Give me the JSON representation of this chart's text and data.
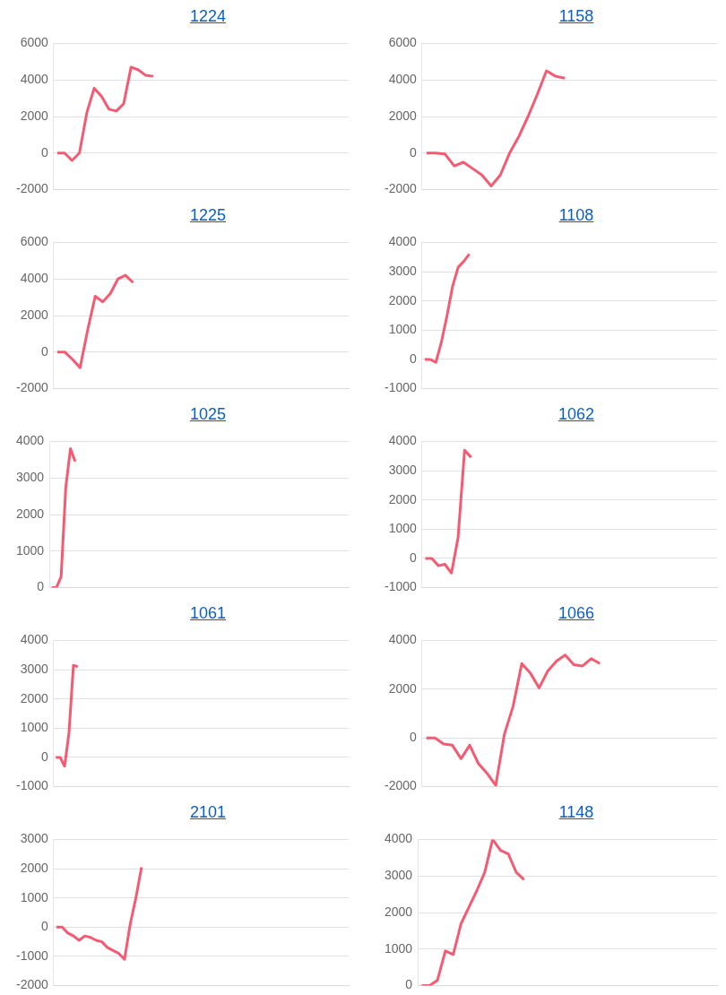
{
  "chart_data": [
    {
      "type": "line",
      "title": "1224",
      "color": "#f45b73",
      "grid": "y",
      "tick_labels": "y",
      "ylim": [
        -2000,
        6000
      ],
      "yticks": [
        -2000,
        0,
        2000,
        4000,
        6000
      ],
      "categories": [
        null,
        null,
        null,
        null,
        null,
        null,
        null,
        null,
        null,
        null,
        null,
        null,
        null,
        null,
        null,
        null,
        null,
        null,
        null,
        null,
        null,
        null,
        null,
        null,
        null,
        null,
        null,
        null,
        null,
        null,
        null,
        null,
        null,
        null,
        null,
        null,
        null,
        null,
        null,
        null
      ],
      "values": [
        0,
        0,
        -400,
        0,
        2200,
        3550,
        3100,
        2400,
        2300,
        2700,
        4700,
        4550,
        4250,
        4200,
        null,
        null,
        null,
        null,
        null,
        null,
        null,
        null,
        null,
        null,
        null,
        null,
        null,
        null,
        null,
        null,
        null,
        null,
        null,
        null,
        null,
        null,
        null,
        null,
        null,
        null
      ]
    },
    {
      "type": "line",
      "title": "1158",
      "color": "#f45b73",
      "grid": "y",
      "tick_labels": "y",
      "ylim": [
        -2000,
        6000
      ],
      "yticks": [
        -2000,
        0,
        2000,
        4000,
        6000
      ],
      "categories": [
        null,
        null,
        null,
        null,
        null,
        null,
        null,
        null,
        null,
        null,
        null,
        null,
        null,
        null,
        null,
        null,
        null,
        null,
        null,
        null,
        null,
        null,
        null,
        null,
        null,
        null,
        null,
        null,
        null,
        null,
        null,
        null
      ],
      "values": [
        0,
        0,
        -50,
        -700,
        -500,
        -850,
        -1200,
        -1800,
        -1200,
        0,
        900,
        2000,
        3200,
        4500,
        4200,
        4100,
        null,
        null,
        null,
        null,
        null,
        null,
        null,
        null,
        null,
        null,
        null,
        null,
        null,
        null,
        null,
        null
      ]
    },
    {
      "type": "line",
      "title": "1225",
      "color": "#f45b73",
      "grid": "y",
      "tick_labels": "y",
      "ylim": [
        -2000,
        6000
      ],
      "yticks": [
        -2000,
        0,
        2000,
        4000,
        6000
      ],
      "categories": [
        null,
        null,
        null,
        null,
        null,
        null,
        null,
        null,
        null,
        null,
        null,
        null,
        null,
        null,
        null,
        null,
        null,
        null,
        null,
        null,
        null,
        null,
        null,
        null,
        null,
        null,
        null,
        null,
        null,
        null,
        null,
        null,
        null,
        null,
        null,
        null,
        null,
        null,
        null
      ],
      "values": [
        0,
        0,
        -400,
        -850,
        1200,
        3050,
        2750,
        3200,
        4000,
        4200,
        3800,
        null,
        null,
        null,
        null,
        null,
        null,
        null,
        null,
        null,
        null,
        null,
        null,
        null,
        null,
        null,
        null,
        null,
        null,
        null,
        null,
        null,
        null,
        null,
        null,
        null,
        null,
        null,
        null
      ]
    },
    {
      "type": "line",
      "title": "1108",
      "color": "#f45b73",
      "grid": "y",
      "tick_labels": "y",
      "ylim": [
        -1000,
        4000
      ],
      "yticks": [
        -1000,
        0,
        1000,
        2000,
        3000,
        4000
      ],
      "categories": [
        null,
        null,
        null,
        null,
        null,
        null,
        null,
        null,
        null,
        null,
        null,
        null,
        null,
        null,
        null,
        null,
        null,
        null,
        null,
        null,
        null,
        null,
        null,
        null,
        null,
        null,
        null,
        null,
        null,
        null,
        null,
        null,
        null,
        null,
        null,
        null,
        null,
        null,
        null,
        null,
        null,
        null,
        null,
        null,
        null,
        null,
        null,
        null,
        null,
        null,
        null,
        null,
        null
      ],
      "values": [
        0,
        0,
        -100,
        600,
        1500,
        2500,
        3150,
        3350,
        3600,
        null,
        null,
        null,
        null,
        null,
        null,
        null,
        null,
        null,
        null,
        null,
        null,
        null,
        null,
        null,
        null,
        null,
        null,
        null,
        null,
        null,
        null,
        null,
        null,
        null,
        null,
        null,
        null,
        null,
        null,
        null,
        null,
        null,
        null,
        null,
        null,
        null,
        null,
        null,
        null,
        null,
        null,
        null,
        null
      ]
    },
    {
      "type": "line",
      "title": "1025",
      "color": "#f45b73",
      "grid": "y",
      "tick_labels": "y",
      "ylim": [
        0,
        4000
      ],
      "yticks": [
        0,
        1000,
        2000,
        3000,
        4000
      ],
      "categories": [
        null,
        null,
        null,
        null,
        null,
        null,
        null,
        null,
        null,
        null,
        null,
        null,
        null,
        null,
        null,
        null,
        null,
        null,
        null,
        null,
        null,
        null,
        null,
        null,
        null,
        null,
        null,
        null,
        null,
        null,
        null,
        null,
        null,
        null,
        null,
        null,
        null,
        null,
        null,
        null,
        null,
        null,
        null,
        null,
        null,
        null,
        null,
        null,
        null,
        null,
        null,
        null,
        null,
        null,
        null,
        null,
        null,
        null,
        null,
        null,
        null,
        null,
        null,
        null
      ],
      "values": [
        0,
        0,
        300,
        2750,
        3800,
        3450,
        null,
        null,
        null,
        null,
        null,
        null,
        null,
        null,
        null,
        null,
        null,
        null,
        null,
        null,
        null,
        null,
        null,
        null,
        null,
        null,
        null,
        null,
        null,
        null,
        null,
        null,
        null,
        null,
        null,
        null,
        null,
        null,
        null,
        null,
        null,
        null,
        null,
        null,
        null,
        null,
        null,
        null,
        null,
        null,
        null,
        null,
        null,
        null,
        null,
        null,
        null,
        null,
        null,
        null,
        null,
        null,
        null,
        null
      ]
    },
    {
      "type": "line",
      "title": "1062",
      "color": "#f45b73",
      "grid": "y",
      "tick_labels": "y",
      "ylim": [
        -1000,
        4000
      ],
      "yticks": [
        -1000,
        0,
        1000,
        2000,
        3000,
        4000
      ],
      "categories": [
        null,
        null,
        null,
        null,
        null,
        null,
        null,
        null,
        null,
        null,
        null,
        null,
        null,
        null,
        null,
        null,
        null,
        null,
        null,
        null,
        null,
        null,
        null,
        null,
        null,
        null,
        null,
        null,
        null,
        null,
        null,
        null,
        null,
        null,
        null,
        null,
        null,
        null,
        null,
        null,
        null,
        null,
        null,
        null,
        null
      ],
      "values": [
        0,
        0,
        -250,
        -200,
        -500,
        700,
        3700,
        3450,
        null,
        null,
        null,
        null,
        null,
        null,
        null,
        null,
        null,
        null,
        null,
        null,
        null,
        null,
        null,
        null,
        null,
        null,
        null,
        null,
        null,
        null,
        null,
        null,
        null,
        null,
        null,
        null,
        null,
        null,
        null,
        null,
        null,
        null,
        null,
        null,
        null
      ]
    },
    {
      "type": "line",
      "title": "1061",
      "color": "#f45b73",
      "grid": "y",
      "tick_labels": "y",
      "ylim": [
        -1000,
        4000
      ],
      "yticks": [
        -1000,
        0,
        1000,
        2000,
        3000,
        4000
      ],
      "categories": [
        null,
        null,
        null,
        null,
        null,
        null,
        null,
        null,
        null,
        null,
        null,
        null,
        null,
        null,
        null,
        null,
        null,
        null,
        null,
        null,
        null,
        null,
        null,
        null,
        null,
        null,
        null,
        null,
        null,
        null,
        null,
        null,
        null,
        null,
        null,
        null,
        null,
        null,
        null,
        null,
        null,
        null,
        null,
        null,
        null,
        null,
        null,
        null,
        null,
        null,
        null,
        null,
        null,
        null,
        null,
        null,
        null,
        null,
        null,
        null,
        null,
        null,
        null,
        null,
        null,
        null,
        null
      ],
      "values": [
        0,
        0,
        -300,
        850,
        3150,
        3100,
        null,
        null,
        null,
        null,
        null,
        null,
        null,
        null,
        null,
        null,
        null,
        null,
        null,
        null,
        null,
        null,
        null,
        null,
        null,
        null,
        null,
        null,
        null,
        null,
        null,
        null,
        null,
        null,
        null,
        null,
        null,
        null,
        null,
        null,
        null,
        null,
        null,
        null,
        null,
        null,
        null,
        null,
        null,
        null,
        null,
        null,
        null,
        null,
        null,
        null,
        null,
        null,
        null,
        null,
        null,
        null,
        null,
        null,
        null,
        null,
        null
      ]
    },
    {
      "type": "line",
      "title": "1066",
      "color": "#f45b73",
      "grid": "y",
      "tick_labels": "y",
      "ylim": [
        -2000,
        4000
      ],
      "yticks": [
        -2000,
        0,
        2000,
        4000
      ],
      "categories": [
        null,
        null,
        null,
        null,
        null,
        null,
        null,
        null,
        null,
        null,
        null,
        null,
        null,
        null,
        null,
        null,
        null,
        null,
        null,
        null,
        null,
        null,
        null,
        null,
        null,
        null,
        null,
        null,
        null,
        null,
        null,
        null,
        null,
        null
      ],
      "values": [
        0,
        0,
        -250,
        -300,
        -850,
        -300,
        -1050,
        -1450,
        -1950,
        150,
        1300,
        3050,
        2650,
        2050,
        2750,
        3150,
        3400,
        3000,
        2950,
        3250,
        3050,
        null,
        null,
        null,
        null,
        null,
        null,
        null,
        null,
        null,
        null,
        null,
        null,
        null
      ]
    },
    {
      "type": "line",
      "title": "2101",
      "color": "#f45b73",
      "grid": "y",
      "tick_labels": "y",
      "ylim": [
        -2000,
        3000
      ],
      "yticks": [
        -2000,
        -1000,
        0,
        1000,
        2000,
        3000
      ],
      "categories": [
        null,
        null,
        null,
        null,
        null,
        null,
        null,
        null,
        null,
        null,
        null,
        null,
        null,
        null,
        null,
        null,
        null,
        null,
        null,
        null,
        null,
        null,
        null,
        null,
        null,
        null,
        null,
        null,
        null,
        null,
        null,
        null,
        null,
        null,
        null,
        null,
        null,
        null,
        null,
        null,
        null,
        null,
        null,
        null,
        null,
        null,
        null,
        null,
        null,
        null,
        null,
        null
      ],
      "values": [
        0,
        0,
        -200,
        -300,
        -450,
        -300,
        -350,
        -450,
        -500,
        -700,
        -800,
        -900,
        -1100,
        100,
        1000,
        2050,
        null,
        null,
        null,
        null,
        null,
        null,
        null,
        null,
        null,
        null,
        null,
        null,
        null,
        null,
        null,
        null,
        null,
        null,
        null,
        null,
        null,
        null,
        null,
        null,
        null,
        null,
        null,
        null,
        null,
        null,
        null,
        null,
        null,
        null,
        null,
        null
      ]
    },
    {
      "type": "line",
      "title": "1148",
      "color": "#f45b73",
      "grid": "y",
      "tick_labels": "y",
      "ylim": [
        0,
        4000
      ],
      "yticks": [
        0,
        1000,
        2000,
        3000,
        4000
      ],
      "categories": [
        null,
        null,
        null,
        null,
        null,
        null,
        null,
        null,
        null,
        null,
        null,
        null,
        null,
        null,
        null,
        null,
        null,
        null,
        null,
        null,
        null,
        null,
        null,
        null,
        null,
        null,
        null,
        null,
        null,
        null,
        null,
        null,
        null,
        null,
        null,
        null,
        null,
        null
      ],
      "values": [
        0,
        0,
        150,
        950,
        850,
        1700,
        2150,
        2600,
        3100,
        4000,
        3700,
        3600,
        3100,
        2900,
        null,
        null,
        null,
        null,
        null,
        null,
        null,
        null,
        null,
        null,
        null,
        null,
        null,
        null,
        null,
        null,
        null,
        null,
        null,
        null,
        null,
        null,
        null,
        null
      ]
    }
  ]
}
